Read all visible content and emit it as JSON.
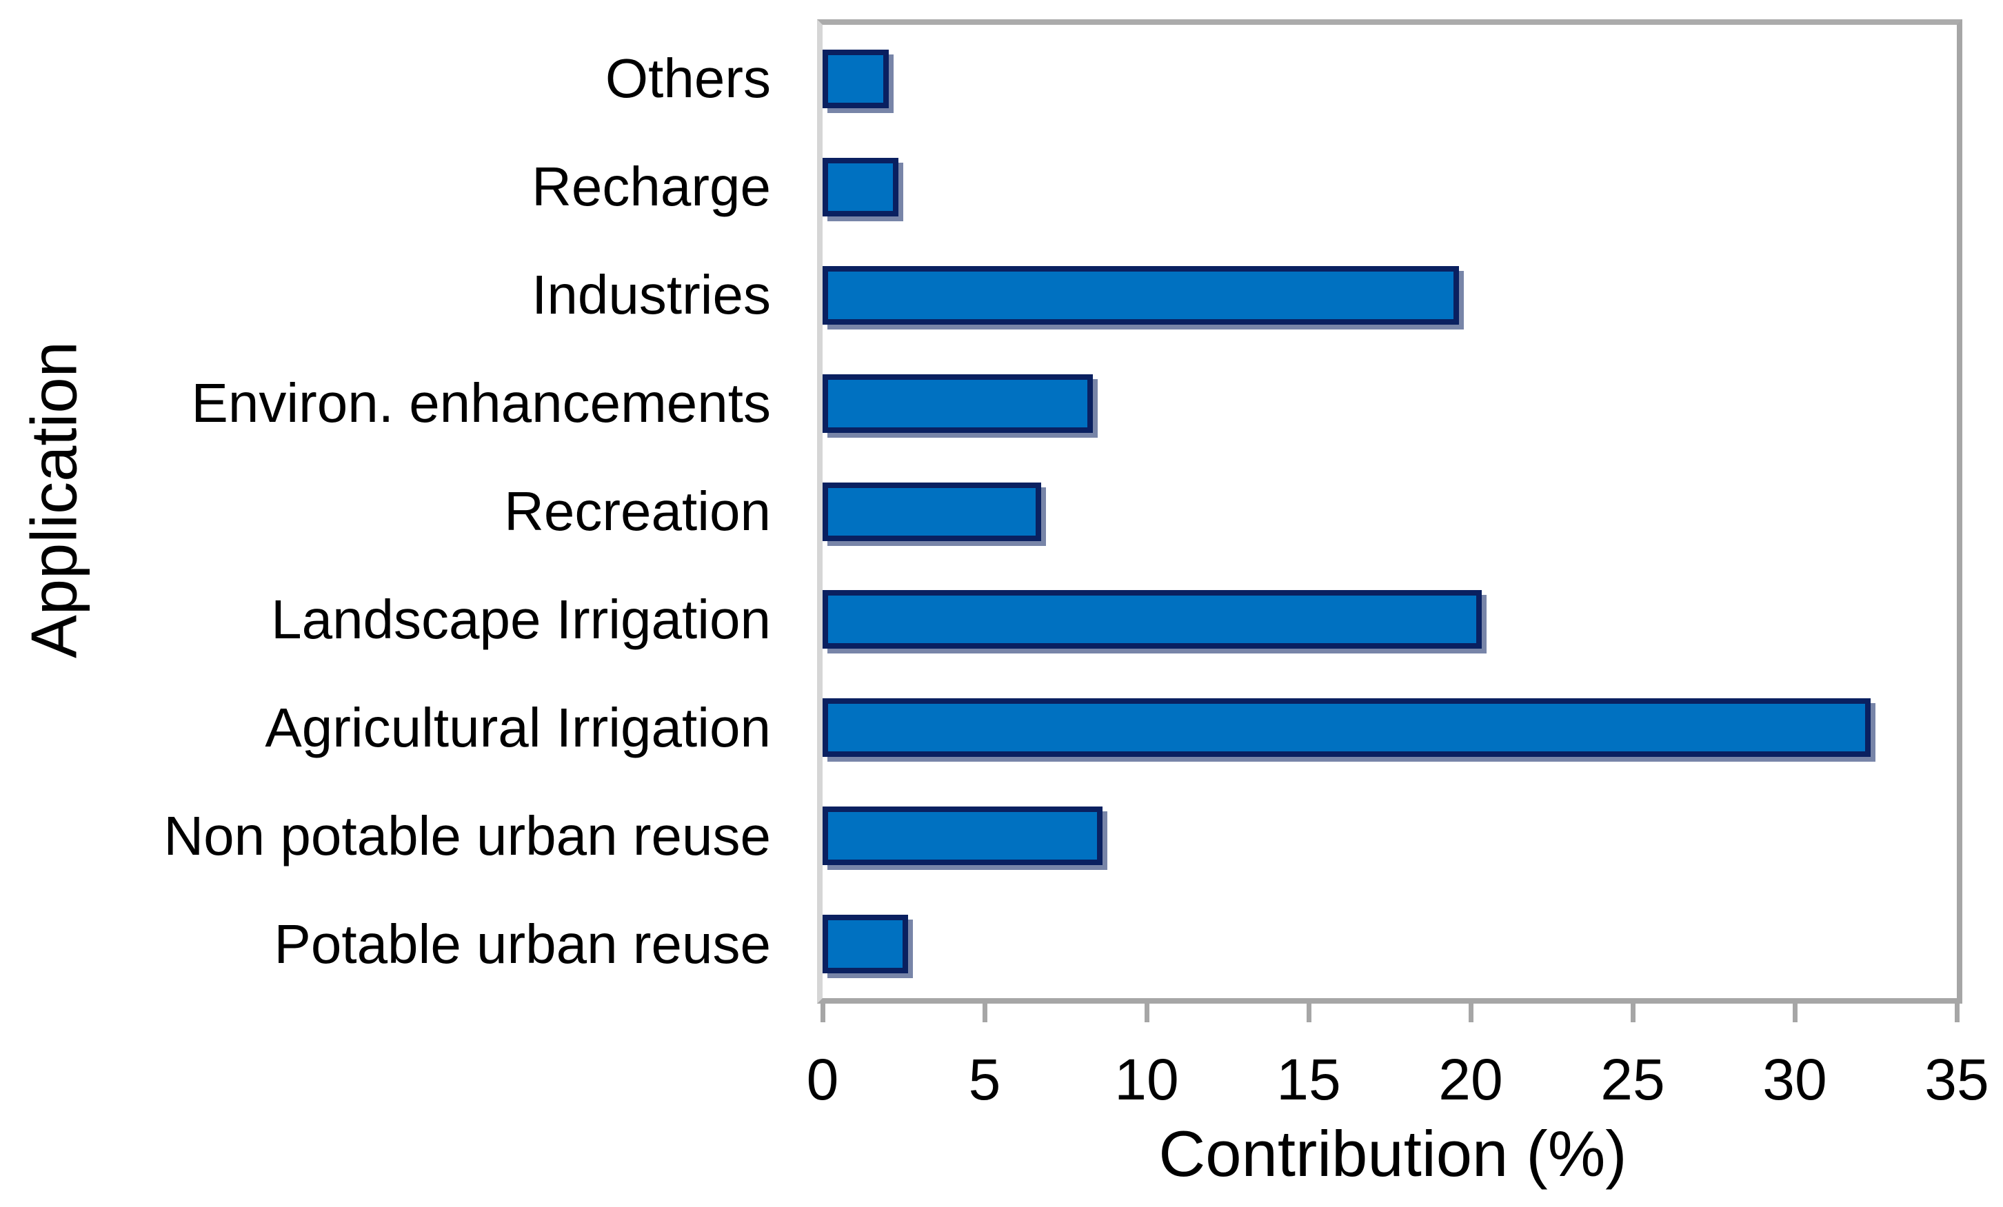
{
  "chart_data": {
    "type": "bar",
    "orientation": "horizontal",
    "title": "",
    "xlabel": "Contribution (%)",
    "ylabel": "Application",
    "categories": [
      "Others",
      "Recharge",
      "Industries",
      "Environ. enhancements",
      "Recreation",
      "Landscape Irrigation",
      "Agricultural Irrigation",
      "Non potable urban reuse",
      "Potable urban reuse"
    ],
    "values": [
      1.7,
      2.0,
      19.3,
      8.0,
      6.4,
      20.0,
      32.0,
      8.3,
      2.3
    ],
    "xlim": [
      0,
      35
    ],
    "xticks": [
      0,
      5,
      10,
      15,
      20,
      25,
      30,
      35
    ],
    "grid": false,
    "legend": null,
    "colors": {
      "bar_fill": "#0071C1",
      "bar_border": "#0A2060",
      "axis_line": "#A6A6A6",
      "left_axis_line": "#D6D6D6",
      "text": "#000000",
      "background": "#FFFFFF"
    }
  }
}
